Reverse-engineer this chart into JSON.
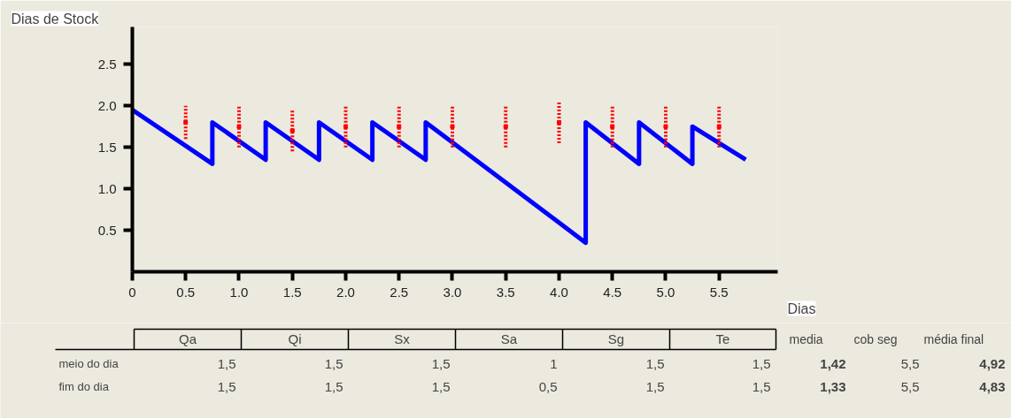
{
  "chart_data": {
    "type": "line",
    "xlabel": "Dias",
    "ylabel": "Dias de Stock",
    "xlim": [
      0,
      6.05
    ],
    "ylim": [
      0,
      2.95
    ],
    "xticks": [
      {
        "value": 0,
        "label": "0"
      },
      0.5,
      {
        "value": 1,
        "label": "1.0"
      },
      1.5,
      {
        "value": 2,
        "label": "2.0"
      },
      2.5,
      {
        "value": 3,
        "label": "3.0"
      },
      3.5,
      {
        "value": 4,
        "label": "4.0"
      },
      4.5,
      {
        "value": 5,
        "label": "5.0"
      },
      5.5
    ],
    "yticks": [
      0.5,
      {
        "value": 1,
        "label": "1.0"
      },
      1.5,
      {
        "value": 2,
        "label": "2.0"
      },
      2.5
    ],
    "series": [
      {
        "color": "#0000ff",
        "x": [
          0,
          0.75,
          0.75,
          1.25,
          1.25,
          1.75,
          1.75,
          2.25,
          2.25,
          2.75,
          2.75,
          4.25,
          4.25,
          4.75,
          4.75,
          5.25,
          5.25,
          5.75
        ],
        "values": [
          1.95,
          1.3,
          1.8,
          1.35,
          1.8,
          1.35,
          1.8,
          1.35,
          1.8,
          1.35,
          1.8,
          0.35,
          1.8,
          1.3,
          1.8,
          1.3,
          1.75,
          1.35
        ]
      },
      {
        "type": "scatter",
        "marker": "square",
        "line_style": "dotted",
        "color": "#ff0000",
        "x": [
          0.5,
          1,
          1.5,
          2,
          2.5,
          3,
          3.5,
          4,
          4.5,
          5,
          5.5
        ],
        "values": [
          1.8,
          1.75,
          1.7,
          1.75,
          1.75,
          1.75,
          1.75,
          1.8,
          1.75,
          1.75,
          1.75
        ],
        "errors": [
          [
            1.6,
            2.0
          ],
          [
            1.5,
            2.0
          ],
          [
            1.45,
            1.95
          ],
          [
            1.5,
            2.0
          ],
          [
            1.5,
            2.0
          ],
          [
            1.5,
            2.0
          ],
          [
            1.5,
            2.0
          ],
          [
            1.55,
            2.05
          ],
          [
            1.5,
            2.0
          ],
          [
            1.5,
            2.0
          ],
          [
            1.5,
            2.0
          ]
        ]
      }
    ],
    "annotations": [
      "Qa",
      "Qi",
      "Sx",
      "Sa",
      "Sg",
      "Te",
      "media",
      "cob seg",
      "média final",
      "meio do dia",
      "1,5",
      "1,5",
      "1,5",
      "1",
      "1,5",
      "1,5",
      "1,42",
      "5,5",
      "4,92",
      "fim do dia",
      "1,5",
      "1,5",
      "1,5",
      "0,5",
      "1,5",
      "1,5",
      "1,33",
      "5,5",
      "4,83"
    ]
  }
}
